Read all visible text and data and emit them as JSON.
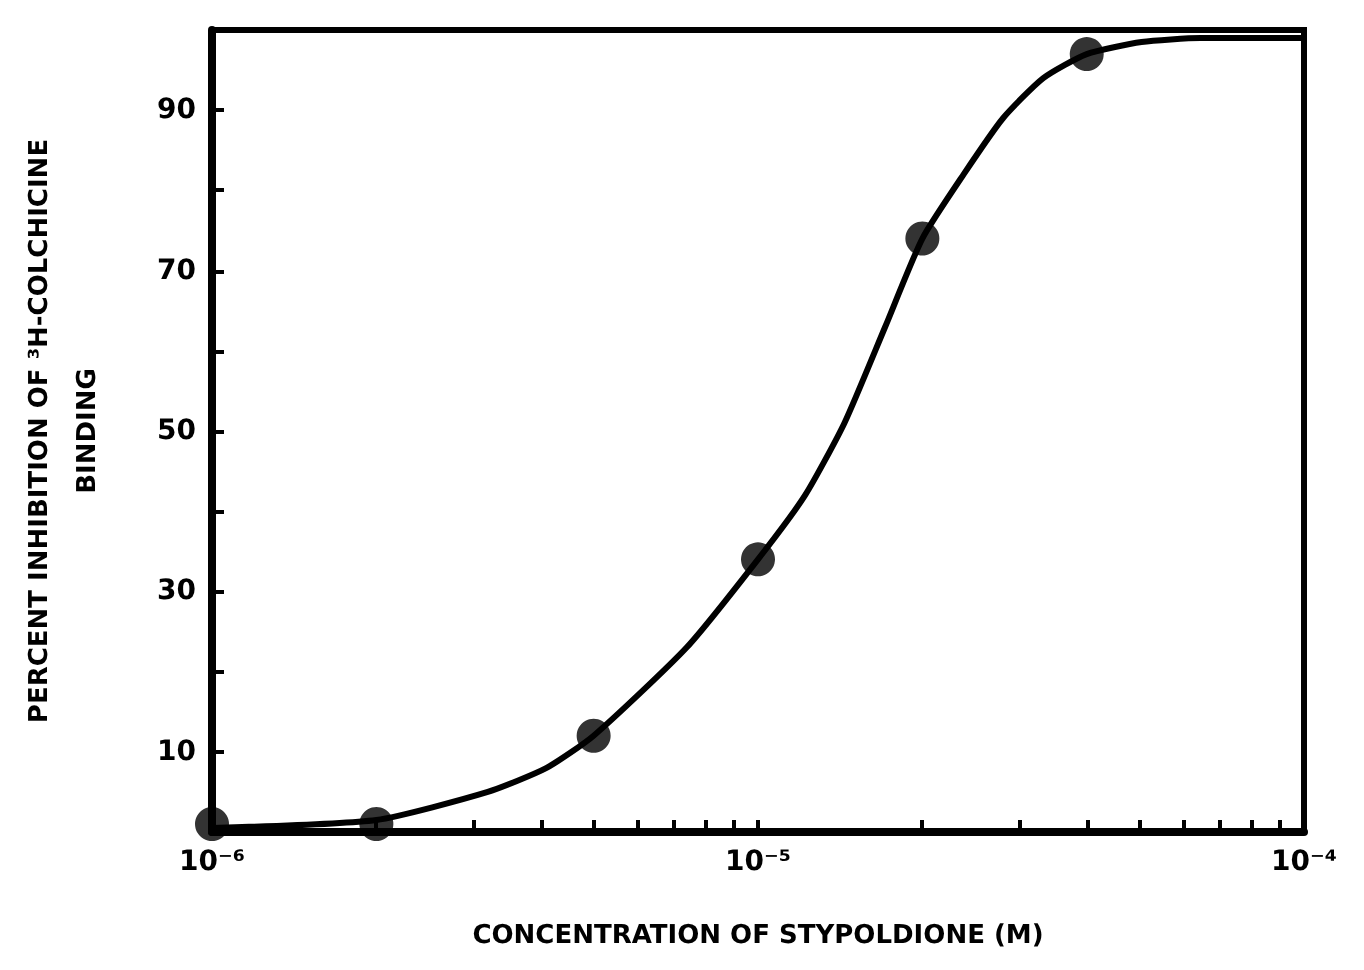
{
  "chart_data": {
    "type": "scatter",
    "xlabel": "CONCENTRATION OF STYPOLDIONE (M)",
    "ylabel": "PERCENT INHIBITION OF ³H-COLCHICINE\nBINDING",
    "log": "x",
    "grid": false,
    "xlim": [
      1e-06,
      0.0001
    ],
    "ylim": [
      0,
      100
    ],
    "xticks": [
      {
        "value": 1e-06,
        "label": "10⁻⁶"
      },
      {
        "value": 2e-06,
        "label": null
      },
      {
        "value": 3e-06,
        "label": null
      },
      {
        "value": 4e-06,
        "label": null
      },
      {
        "value": 5e-06,
        "label": null
      },
      {
        "value": 6e-06,
        "label": null
      },
      {
        "value": 7e-06,
        "label": null
      },
      {
        "value": 8e-06,
        "label": null
      },
      {
        "value": 9e-06,
        "label": null
      },
      {
        "value": 1e-05,
        "label": "10⁻⁵"
      },
      {
        "value": 2e-05,
        "label": null
      },
      {
        "value": 3e-05,
        "label": null
      },
      {
        "value": 4e-05,
        "label": null
      },
      {
        "value": 5e-05,
        "label": null
      },
      {
        "value": 6e-05,
        "label": null
      },
      {
        "value": 7e-05,
        "label": null
      },
      {
        "value": 8e-05,
        "label": null
      },
      {
        "value": 9e-05,
        "label": null
      },
      {
        "value": 0.0001,
        "label": "10⁻⁴"
      }
    ],
    "yticks": [
      {
        "value": 0,
        "label": null
      },
      10,
      {
        "value": 20,
        "label": null
      },
      30,
      {
        "value": 40,
        "label": null
      },
      50,
      {
        "value": 60,
        "label": null
      },
      70,
      {
        "value": 80,
        "label": null
      },
      90
    ],
    "series": [
      {
        "type": "scatter",
        "marker": "circle",
        "color": "#000000",
        "x": [
          1e-06,
          2e-06,
          5e-06,
          1e-05,
          2e-05,
          4e-05
        ],
        "values": [
          1,
          1,
          12,
          34,
          74,
          97
        ]
      },
      {
        "type": "line",
        "marker": "none",
        "line_style": "solid",
        "color": "#000000",
        "x": [
          1e-06,
          2e-06,
          3.2e-06,
          4.1e-06,
          5e-06,
          7.4e-06,
          1e-05,
          1.22e-05,
          1.44e-05,
          1.71e-05,
          2e-05,
          2.38e-05,
          2.81e-05,
          3.33e-05,
          4e-05,
          5.04e-05,
          6.46e-05,
          0.0001
        ],
        "values": [
          0.5,
          1.5,
          5,
          8,
          12,
          23,
          34,
          42,
          51,
          63,
          74,
          82,
          89,
          94,
          97,
          98.5,
          99,
          99
        ]
      }
    ]
  }
}
